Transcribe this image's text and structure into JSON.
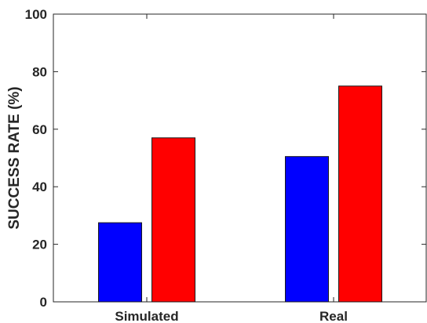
{
  "chart_data": {
    "type": "bar",
    "title": "",
    "xlabel": "",
    "ylabel": "SUCCESS RATE (%)",
    "ylim": [
      0,
      100
    ],
    "yticks": [
      0,
      20,
      40,
      60,
      80,
      100
    ],
    "categories": [
      "Simulated",
      "Real"
    ],
    "series": [
      {
        "color": "#0000ff",
        "values": [
          27.5,
          50.5
        ]
      },
      {
        "color": "#ff0000",
        "values": [
          57,
          75
        ]
      }
    ],
    "grid": false,
    "legend": "none"
  }
}
